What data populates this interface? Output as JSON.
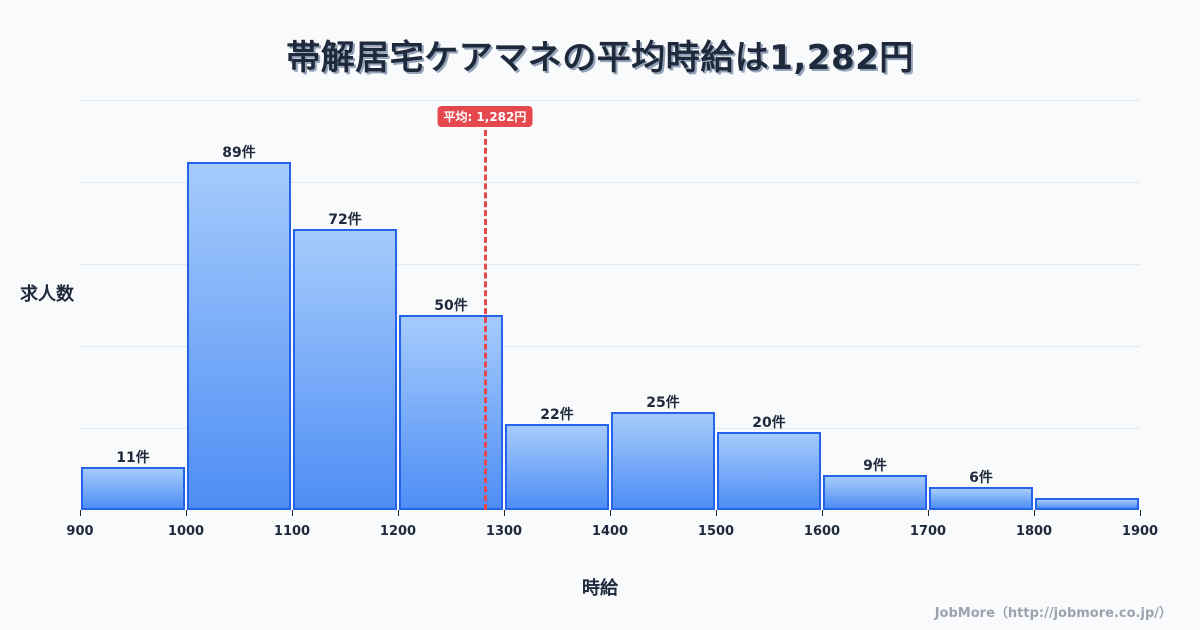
{
  "title": "帯解居宅ケアマネの平均時給は1,282円",
  "y_axis_label": "求人数",
  "x_axis_label": "時給",
  "credit": "JobMore（http://jobmore.co.jp/）",
  "average": {
    "label": "平均: 1,282円",
    "value": 1282,
    "color": "#e5484d"
  },
  "colors": {
    "bar_border": "#2563eb",
    "bar_top": "#a5cbfb",
    "bar_bottom": "#4f8ef5",
    "average_line": "#e5484d"
  },
  "chart_data": {
    "type": "bar",
    "title": "帯解居宅ケアマネの平均時給は1,282円",
    "xlabel": "時給",
    "ylabel": "求人数",
    "bins": [
      [
        900,
        1000
      ],
      [
        1000,
        1100
      ],
      [
        1100,
        1200
      ],
      [
        1200,
        1300
      ],
      [
        1300,
        1400
      ],
      [
        1400,
        1500
      ],
      [
        1500,
        1600
      ],
      [
        1600,
        1700
      ],
      [
        1700,
        1800
      ],
      [
        1800,
        1900
      ]
    ],
    "categories": [
      "900-1000",
      "1000-1100",
      "1100-1200",
      "1200-1300",
      "1300-1400",
      "1400-1500",
      "1500-1600",
      "1600-1700",
      "1700-1800",
      "1800-1900"
    ],
    "values": [
      11,
      89,
      72,
      50,
      22,
      25,
      20,
      9,
      6,
      3
    ],
    "value_labels": [
      "11件",
      "89件",
      "72件",
      "50件",
      "22件",
      "25件",
      "20件",
      "9件",
      "6件",
      ""
    ],
    "x_ticks": [
      "900",
      "1000",
      "1100",
      "1200",
      "1300",
      "1400",
      "1500",
      "1600",
      "1700",
      "1800",
      "1900"
    ],
    "xlim": [
      900,
      1900
    ],
    "ylim": [
      0,
      105
    ],
    "grid": true,
    "annotations": [
      {
        "type": "vline",
        "x": 1282,
        "label": "平均: 1,282円"
      }
    ]
  }
}
